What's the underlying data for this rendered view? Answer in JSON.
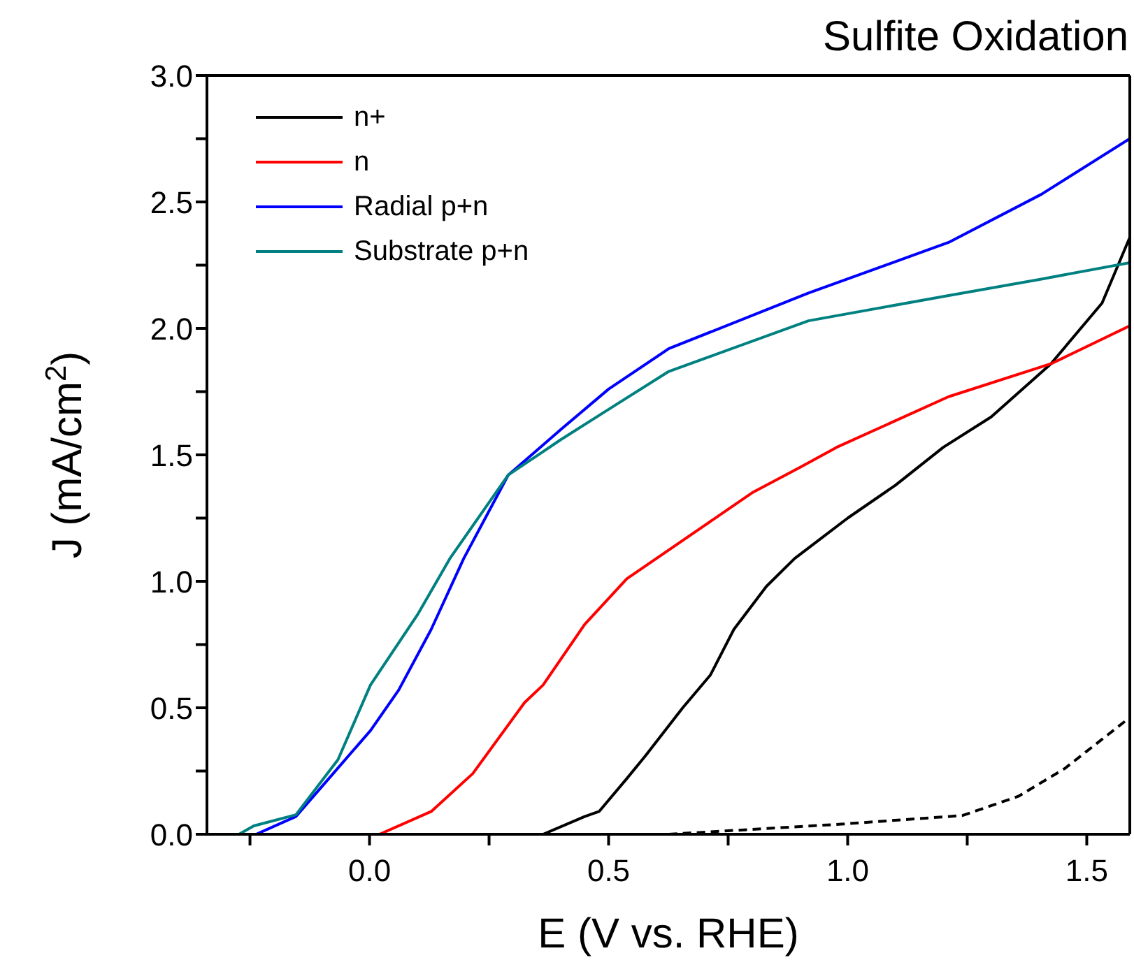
{
  "chart_data": {
    "type": "line",
    "title": "Sulfite Oxidation",
    "xlabel": "E (V vs. RHE)",
    "ylabel": "J (mA/cm$^{2}$)",
    "xlim": [
      -0.34,
      1.59
    ],
    "xticks": [
      {
        "value": -0.25,
        "label": null
      },
      {
        "value": 0,
        "label": "0.0"
      },
      {
        "value": 0.25,
        "label": null
      },
      0.5,
      {
        "value": 0.75,
        "label": null
      },
      {
        "value": 1,
        "label": "1.0"
      },
      {
        "value": 1.25,
        "label": null
      },
      1.5
    ],
    "ylim": [
      0,
      3.0
    ],
    "yticks": [
      {
        "value": 0,
        "label": "0.0"
      },
      {
        "value": 0.25,
        "label": null
      },
      0.5,
      {
        "value": 0.75,
        "label": null
      },
      {
        "value": 1,
        "label": "1.0"
      },
      {
        "value": 1.25,
        "label": null
      },
      1.5,
      {
        "value": 1.75,
        "label": null
      },
      {
        "value": 2,
        "label": "2.0"
      },
      {
        "value": 2.25,
        "label": null
      },
      2.5,
      {
        "value": 2.75,
        "label": null
      },
      {
        "value": 3,
        "label": "3.0"
      }
    ],
    "grid": false,
    "legend": "top left",
    "marker": "none",
    "series": [
      {
        "name": "n+",
        "color": "#000000",
        "x": [
          0.363,
          0.45,
          0.48,
          0.538,
          0.577,
          0.655,
          0.713,
          0.762,
          0.83,
          0.889,
          1.0,
          1.1,
          1.2,
          1.3,
          1.425,
          1.532,
          1.59
        ],
        "values": [
          0,
          0.07,
          0.09,
          0.22,
          0.31,
          0.5,
          0.63,
          0.81,
          0.98,
          1.09,
          1.25,
          1.38,
          1.53,
          1.65,
          1.86,
          2.1,
          2.36
        ]
      },
      {
        "name": "n",
        "color": "#ff0000",
        "x": [
          0.021,
          0.129,
          0.216,
          0.324,
          0.363,
          0.45,
          0.538,
          0.7,
          0.8,
          0.9,
          0.977,
          1.211,
          1.425,
          1.59
        ],
        "values": [
          0,
          0.09,
          0.24,
          0.52,
          0.59,
          0.83,
          1.01,
          1.22,
          1.35,
          1.45,
          1.53,
          1.73,
          1.86,
          2.01
        ]
      },
      {
        "name": "Radial p+n",
        "color": "#0000ff",
        "x": [
          -0.237,
          -0.154,
          -0.076,
          0.002,
          0.061,
          0.129,
          0.197,
          0.29,
          0.4,
          0.5,
          0.626,
          0.918,
          1.211,
          1.405,
          1.59
        ],
        "values": [
          0,
          0.07,
          0.24,
          0.41,
          0.57,
          0.81,
          1.09,
          1.42,
          1.6,
          1.76,
          1.92,
          2.14,
          2.34,
          2.53,
          2.75
        ]
      },
      {
        "name": "Substrate p+n",
        "color": "#008080",
        "x": [
          -0.273,
          -0.242,
          -0.154,
          -0.066,
          0.002,
          0.1,
          0.168,
          0.29,
          0.4,
          0.5,
          0.626,
          0.918,
          1.211,
          1.405,
          1.59
        ],
        "values": [
          0,
          0.033,
          0.077,
          0.295,
          0.59,
          0.867,
          1.09,
          1.42,
          1.56,
          1.68,
          1.83,
          2.03,
          2.13,
          2.195,
          2.26
        ]
      },
      {
        "color": "#000000",
        "line_style": "dashed",
        "x": [
          0.626,
          0.986,
          1.24,
          1.357,
          1.454,
          1.589
        ],
        "values": [
          0,
          0.04,
          0.074,
          0.15,
          0.26,
          0.46
        ]
      }
    ]
  }
}
